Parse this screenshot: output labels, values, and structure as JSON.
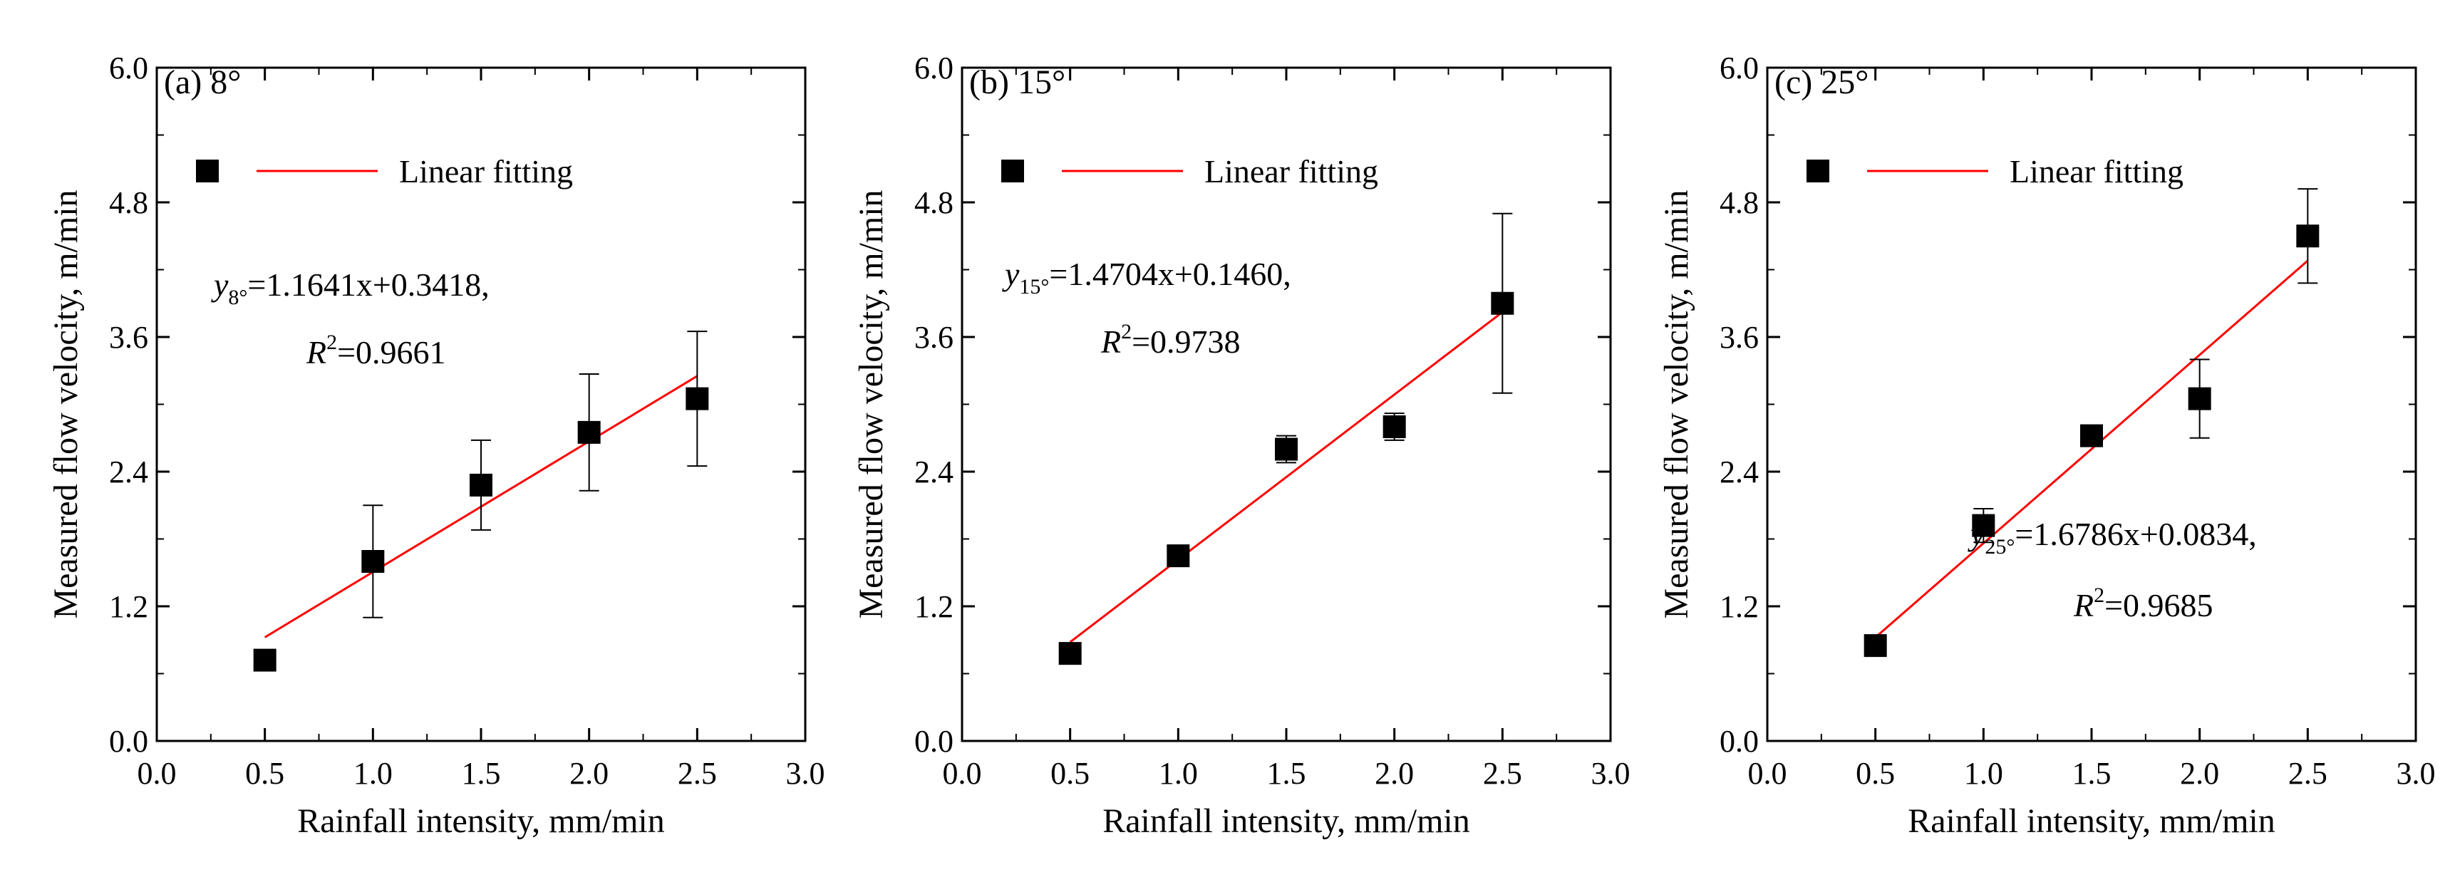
{
  "chart_data": [
    {
      "type": "scatter",
      "title": "(a) 8°",
      "xlabel": "Rainfall intensity, mm/min",
      "ylabel": "Measured flow velocity, m/min",
      "xlim": [
        0.0,
        3.0
      ],
      "ylim": [
        0.0,
        6.0
      ],
      "xticks": [
        "0.0",
        "0.5",
        "1.0",
        "1.5",
        "2.0",
        "2.5",
        "3.0"
      ],
      "yticks": [
        "0.0",
        "1.2",
        "2.4",
        "3.6",
        "4.8",
        "6.0"
      ],
      "legend": {
        "label": "Linear fitting",
        "placement": "top-left"
      },
      "x": [
        0.5,
        1.0,
        1.5,
        2.0,
        2.5
      ],
      "y": [
        0.72,
        1.6,
        2.28,
        2.75,
        3.05
      ],
      "error": [
        0.05,
        0.5,
        0.4,
        0.52,
        0.6
      ],
      "fit": {
        "slope": 1.1641,
        "intercept": 0.3418,
        "x_range": [
          0.5,
          2.5
        ]
      },
      "equation": {
        "y": "y",
        "sub": "8°",
        "rhs": "=1.1641x+0.3418,",
        "r_base": "R",
        "r_sup": "2",
        "r_rhs": "=0.9661"
      }
    },
    {
      "type": "scatter",
      "title": "(b) 15°",
      "xlabel": "Rainfall intensity, mm/min",
      "ylabel": "Measured flow velocity, m/min",
      "xlim": [
        0.0,
        3.0
      ],
      "ylim": [
        0.0,
        6.0
      ],
      "xticks": [
        "0.0",
        "0.5",
        "1.0",
        "1.5",
        "2.0",
        "2.5",
        "3.0"
      ],
      "yticks": [
        "0.0",
        "1.2",
        "2.4",
        "3.6",
        "4.8",
        "6.0"
      ],
      "legend": {
        "label": "Linear fitting",
        "placement": "top-left"
      },
      "x": [
        0.5,
        1.0,
        1.5,
        2.0,
        2.5
      ],
      "y": [
        0.78,
        1.65,
        2.6,
        2.8,
        3.9
      ],
      "error": [
        0.04,
        0.05,
        0.12,
        0.12,
        0.8
      ],
      "fit": {
        "slope": 1.4704,
        "intercept": 0.146,
        "x_range": [
          0.5,
          2.5
        ]
      },
      "equation": {
        "y": "y",
        "sub": "15°",
        "rhs": "=1.4704x+0.1460,",
        "r_base": "R",
        "r_sup": "2",
        "r_rhs": "=0.9738"
      }
    },
    {
      "type": "scatter",
      "title": "(c) 25°",
      "xlabel": "Rainfall intensity, mm/min",
      "ylabel": "Measured flow velocity, m/min",
      "xlim": [
        0.0,
        3.0
      ],
      "ylim": [
        0.0,
        6.0
      ],
      "xticks": [
        "0.0",
        "0.5",
        "1.0",
        "1.5",
        "2.0",
        "2.5",
        "3.0"
      ],
      "yticks": [
        "0.0",
        "1.2",
        "2.4",
        "3.6",
        "4.8",
        "6.0"
      ],
      "legend": {
        "label": "Linear fitting",
        "placement": "top-left"
      },
      "x": [
        0.5,
        1.0,
        1.5,
        2.0,
        2.5
      ],
      "y": [
        0.85,
        1.92,
        2.72,
        3.05,
        4.5
      ],
      "error": [
        0.04,
        0.15,
        0.06,
        0.35,
        0.42
      ],
      "fit": {
        "slope": 1.6786,
        "intercept": 0.0834,
        "x_range": [
          0.5,
          2.5
        ]
      },
      "equation": {
        "y": "y",
        "sub": "25°",
        "rhs": "=1.6786x+0.0834,",
        "r_base": "R",
        "r_sup": "2",
        "r_rhs": "=0.9685"
      }
    }
  ]
}
